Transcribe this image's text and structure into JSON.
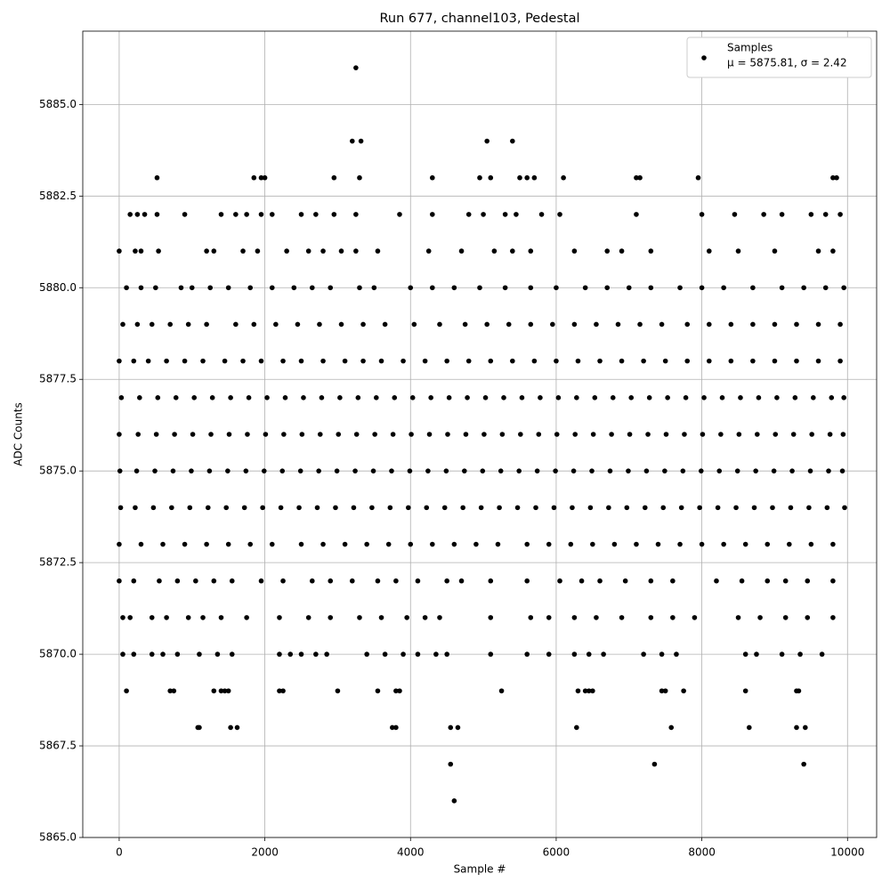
{
  "chart_data": {
    "type": "scatter",
    "title": "Run 677, channel103, Pedestal",
    "x_label": "Sample #",
    "y_label": "ADC Counts",
    "xlim": [
      -500,
      10400
    ],
    "ylim": [
      5865,
      5887
    ],
    "xticks": [
      0,
      2000,
      4000,
      6000,
      8000,
      10000
    ],
    "yticks": [
      {
        "value": 5865,
        "label": "5865.0"
      },
      5867.5,
      {
        "value": 5870,
        "label": "5870.0"
      },
      5872.5,
      {
        "value": 5875,
        "label": "5875.0"
      },
      5877.5,
      {
        "value": 5880,
        "label": "5880.0"
      },
      5882.5,
      {
        "value": 5885,
        "label": "5885.0"
      }
    ],
    "grid": true,
    "legend": "upper right",
    "legend_stats": "μ = 5875.81, σ = 2.42",
    "x": [
      3250,
      3200,
      3320,
      5050,
      5400,
      520,
      1850,
      1950,
      2000,
      2950,
      3300,
      4300,
      4950,
      5100,
      5500,
      5600,
      5700,
      6100,
      7100,
      7150,
      7950,
      9800,
      9850,
      150,
      250,
      350,
      520,
      900,
      1400,
      1600,
      1750,
      1950,
      2100,
      2500,
      2700,
      2950,
      3250,
      3850,
      4300,
      4800,
      5000,
      5300,
      5450,
      5800,
      6050,
      7100,
      8000,
      8450,
      8850,
      9100,
      9500,
      9700,
      9900,
      0,
      220,
      300,
      540,
      1200,
      1300,
      1700,
      1900,
      2300,
      2600,
      2800,
      3050,
      3250,
      3550,
      4250,
      4700,
      5150,
      5400,
      5650,
      6250,
      6700,
      6900,
      7300,
      8100,
      8500,
      9000,
      9600,
      9800,
      100,
      300,
      500,
      850,
      1000,
      1250,
      1500,
      1800,
      2100,
      2400,
      2650,
      2900,
      3300,
      3500,
      4000,
      4300,
      4600,
      4950,
      5300,
      5650,
      6000,
      6400,
      6700,
      7000,
      7300,
      7700,
      8000,
      8300,
      8700,
      9100,
      9400,
      9700,
      9950,
      50,
      250,
      450,
      700,
      950,
      1200,
      1600,
      1850,
      2150,
      2450,
      2750,
      3050,
      3350,
      3650,
      4050,
      4400,
      4750,
      5050,
      5350,
      5650,
      5950,
      6250,
      6550,
      6850,
      7150,
      7450,
      7800,
      8100,
      8400,
      8700,
      9000,
      9300,
      9600,
      9900,
      0,
      200,
      400,
      650,
      900,
      1150,
      1450,
      1700,
      1950,
      2250,
      2500,
      2800,
      3100,
      3350,
      3600,
      3900,
      4200,
      4500,
      4800,
      5100,
      5400,
      5700,
      6000,
      6300,
      6600,
      6900,
      7200,
      7500,
      7800,
      8100,
      8400,
      8700,
      9000,
      9300,
      9600,
      9900,
      30,
      280,
      530,
      780,
      1030,
      1280,
      1530,
      1780,
      2030,
      2280,
      2530,
      2780,
      3030,
      3280,
      3530,
      3780,
      4030,
      4280,
      4530,
      4780,
      5030,
      5280,
      5530,
      5780,
      6030,
      6280,
      6530,
      6780,
      7030,
      7280,
      7530,
      7780,
      8030,
      8280,
      8530,
      8780,
      9030,
      9280,
      9530,
      9780,
      9950,
      0,
      260,
      510,
      760,
      1010,
      1260,
      1510,
      1760,
      2010,
      2260,
      2510,
      2760,
      3010,
      3260,
      3510,
      3760,
      4010,
      4260,
      4510,
      4760,
      5010,
      5260,
      5510,
      5760,
      6010,
      6260,
      6510,
      6760,
      7010,
      7260,
      7510,
      7760,
      8010,
      8260,
      8510,
      8760,
      9010,
      9260,
      9510,
      9760,
      9940,
      10,
      240,
      490,
      740,
      990,
      1240,
      1490,
      1740,
      1990,
      2240,
      2490,
      2740,
      2990,
      3240,
      3490,
      3740,
      3990,
      4240,
      4490,
      4740,
      4990,
      5240,
      5490,
      5740,
      5990,
      6240,
      6490,
      6740,
      6990,
      7240,
      7490,
      7740,
      7990,
      8240,
      8490,
      8740,
      8990,
      9240,
      9490,
      9740,
      9930,
      20,
      220,
      470,
      720,
      970,
      1220,
      1470,
      1720,
      1970,
      2220,
      2470,
      2720,
      2970,
      3220,
      3470,
      3720,
      3970,
      4220,
      4470,
      4720,
      4970,
      5220,
      5470,
      5720,
      5970,
      6220,
      6470,
      6720,
      6970,
      7220,
      7470,
      7720,
      7970,
      8220,
      8470,
      8720,
      8970,
      9220,
      9470,
      9720,
      9960,
      0,
      300,
      600,
      900,
      1200,
      1500,
      1800,
      2100,
      2500,
      2800,
      3100,
      3400,
      3700,
      4000,
      4300,
      4600,
      4900,
      5200,
      5600,
      5900,
      6200,
      6500,
      6800,
      7100,
      7400,
      7700,
      8000,
      8300,
      8600,
      8900,
      9200,
      9500,
      9800,
      0,
      200,
      550,
      800,
      1050,
      1300,
      1550,
      1950,
      2250,
      2650,
      2900,
      3200,
      3550,
      3800,
      4100,
      4500,
      4700,
      5100,
      5600,
      6050,
      6350,
      6600,
      6950,
      7300,
      7600,
      8200,
      8550,
      8900,
      9150,
      9450,
      9800,
      50,
      150,
      450,
      650,
      950,
      1150,
      1400,
      1750,
      2200,
      2600,
      2900,
      3300,
      3600,
      3950,
      4200,
      4400,
      5100,
      5650,
      5900,
      6250,
      6550,
      6900,
      7300,
      7600,
      7900,
      8500,
      8800,
      9150,
      9450,
      9800,
      50,
      200,
      450,
      600,
      800,
      1100,
      1350,
      1550,
      2200,
      2350,
      2500,
      2700,
      2850,
      3400,
      3650,
      3900,
      4100,
      4350,
      4500,
      5100,
      5600,
      5900,
      6250,
      6450,
      6650,
      7200,
      7450,
      7650,
      8600,
      8750,
      9100,
      9350,
      9650,
      100,
      700,
      750,
      1300,
      1400,
      1450,
      1500,
      2200,
      2250,
      3000,
      3550,
      3800,
      3850,
      5250,
      6300,
      6400,
      6450,
      6500,
      7450,
      7500,
      7750,
      8600,
      9300,
      9330,
      1080,
      1100,
      1530,
      1620,
      3750,
      3800,
      4550,
      4650,
      6280,
      7580,
      8650,
      9300,
      9420,
      4550,
      7350,
      9400,
      4600
    ],
    "series": [
      {
        "name": "Samples",
        "color": "#000000",
        "values": [
          5886,
          5884,
          5884,
          5884,
          5884,
          5883,
          5883,
          5883,
          5883,
          5883,
          5883,
          5883,
          5883,
          5883,
          5883,
          5883,
          5883,
          5883,
          5883,
          5883,
          5883,
          5883,
          5883,
          5882,
          5882,
          5882,
          5882,
          5882,
          5882,
          5882,
          5882,
          5882,
          5882,
          5882,
          5882,
          5882,
          5882,
          5882,
          5882,
          5882,
          5882,
          5882,
          5882,
          5882,
          5882,
          5882,
          5882,
          5882,
          5882,
          5882,
          5882,
          5882,
          5882,
          5881,
          5881,
          5881,
          5881,
          5881,
          5881,
          5881,
          5881,
          5881,
          5881,
          5881,
          5881,
          5881,
          5881,
          5881,
          5881,
          5881,
          5881,
          5881,
          5881,
          5881,
          5881,
          5881,
          5881,
          5881,
          5881,
          5881,
          5881,
          5880,
          5880,
          5880,
          5880,
          5880,
          5880,
          5880,
          5880,
          5880,
          5880,
          5880,
          5880,
          5880,
          5880,
          5880,
          5880,
          5880,
          5880,
          5880,
          5880,
          5880,
          5880,
          5880,
          5880,
          5880,
          5880,
          5880,
          5880,
          5880,
          5880,
          5880,
          5880,
          5880,
          5879,
          5879,
          5879,
          5879,
          5879,
          5879,
          5879,
          5879,
          5879,
          5879,
          5879,
          5879,
          5879,
          5879,
          5879,
          5879,
          5879,
          5879,
          5879,
          5879,
          5879,
          5879,
          5879,
          5879,
          5879,
          5879,
          5879,
          5879,
          5879,
          5879,
          5879,
          5879,
          5879,
          5879,
          5878,
          5878,
          5878,
          5878,
          5878,
          5878,
          5878,
          5878,
          5878,
          5878,
          5878,
          5878,
          5878,
          5878,
          5878,
          5878,
          5878,
          5878,
          5878,
          5878,
          5878,
          5878,
          5878,
          5878,
          5878,
          5878,
          5878,
          5878,
          5878,
          5878,
          5878,
          5878,
          5878,
          5878,
          5878,
          5878,
          5877,
          5877,
          5877,
          5877,
          5877,
          5877,
          5877,
          5877,
          5877,
          5877,
          5877,
          5877,
          5877,
          5877,
          5877,
          5877,
          5877,
          5877,
          5877,
          5877,
          5877,
          5877,
          5877,
          5877,
          5877,
          5877,
          5877,
          5877,
          5877,
          5877,
          5877,
          5877,
          5877,
          5877,
          5877,
          5877,
          5877,
          5877,
          5877,
          5877,
          5877,
          5876,
          5876,
          5876,
          5876,
          5876,
          5876,
          5876,
          5876,
          5876,
          5876,
          5876,
          5876,
          5876,
          5876,
          5876,
          5876,
          5876,
          5876,
          5876,
          5876,
          5876,
          5876,
          5876,
          5876,
          5876,
          5876,
          5876,
          5876,
          5876,
          5876,
          5876,
          5876,
          5876,
          5876,
          5876,
          5876,
          5876,
          5876,
          5876,
          5876,
          5876,
          5875,
          5875,
          5875,
          5875,
          5875,
          5875,
          5875,
          5875,
          5875,
          5875,
          5875,
          5875,
          5875,
          5875,
          5875,
          5875,
          5875,
          5875,
          5875,
          5875,
          5875,
          5875,
          5875,
          5875,
          5875,
          5875,
          5875,
          5875,
          5875,
          5875,
          5875,
          5875,
          5875,
          5875,
          5875,
          5875,
          5875,
          5875,
          5875,
          5875,
          5875,
          5874,
          5874,
          5874,
          5874,
          5874,
          5874,
          5874,
          5874,
          5874,
          5874,
          5874,
          5874,
          5874,
          5874,
          5874,
          5874,
          5874,
          5874,
          5874,
          5874,
          5874,
          5874,
          5874,
          5874,
          5874,
          5874,
          5874,
          5874,
          5874,
          5874,
          5874,
          5874,
          5874,
          5874,
          5874,
          5874,
          5874,
          5874,
          5874,
          5874,
          5874,
          5873,
          5873,
          5873,
          5873,
          5873,
          5873,
          5873,
          5873,
          5873,
          5873,
          5873,
          5873,
          5873,
          5873,
          5873,
          5873,
          5873,
          5873,
          5873,
          5873,
          5873,
          5873,
          5873,
          5873,
          5873,
          5873,
          5873,
          5873,
          5873,
          5873,
          5873,
          5873,
          5873,
          5872,
          5872,
          5872,
          5872,
          5872,
          5872,
          5872,
          5872,
          5872,
          5872,
          5872,
          5872,
          5872,
          5872,
          5872,
          5872,
          5872,
          5872,
          5872,
          5872,
          5872,
          5872,
          5872,
          5872,
          5872,
          5872,
          5872,
          5872,
          5872,
          5872,
          5872,
          5871,
          5871,
          5871,
          5871,
          5871,
          5871,
          5871,
          5871,
          5871,
          5871,
          5871,
          5871,
          5871,
          5871,
          5871,
          5871,
          5871,
          5871,
          5871,
          5871,
          5871,
          5871,
          5871,
          5871,
          5871,
          5871,
          5871,
          5871,
          5871,
          5871,
          5870,
          5870,
          5870,
          5870,
          5870,
          5870,
          5870,
          5870,
          5870,
          5870,
          5870,
          5870,
          5870,
          5870,
          5870,
          5870,
          5870,
          5870,
          5870,
          5870,
          5870,
          5870,
          5870,
          5870,
          5870,
          5870,
          5870,
          5870,
          5870,
          5870,
          5870,
          5870,
          5870,
          5869,
          5869,
          5869,
          5869,
          5869,
          5869,
          5869,
          5869,
          5869,
          5869,
          5869,
          5869,
          5869,
          5869,
          5869,
          5869,
          5869,
          5869,
          5869,
          5869,
          5869,
          5869,
          5869,
          5869,
          5868,
          5868,
          5868,
          5868,
          5868,
          5868,
          5868,
          5868,
          5868,
          5868,
          5868,
          5868,
          5868,
          5867,
          5867,
          5867,
          5866
        ]
      }
    ]
  }
}
